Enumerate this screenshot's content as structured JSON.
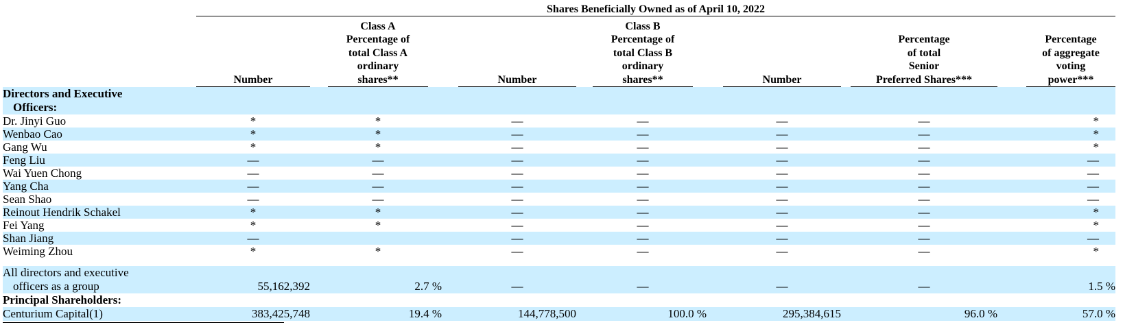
{
  "header": {
    "span_title": "Shares Beneficially Owned as of April 10, 2022",
    "columns": [
      "Number",
      "Class A\nPercentage of\ntotal Class A\nordinary\nshares**",
      "Number",
      "Class B\nPercentage of\ntotal Class B\nordinary\nshares**",
      "Number",
      "Percentage\nof total\nSenior\nPreferred Shares***",
      "Percentage\nof aggregate\nvoting\npower***"
    ]
  },
  "sections": {
    "directors": {
      "line1": "Directors and Executive",
      "line2": "Officers:"
    },
    "principal": "Principal Shareholders:"
  },
  "rows": [
    {
      "name": "Dr. Jinyi Guo",
      "cells": [
        "*",
        "*",
        "—",
        "—",
        "—",
        "—",
        "*"
      ]
    },
    {
      "name": "Wenbao Cao",
      "cells": [
        "*",
        "*",
        "—",
        "—",
        "—",
        "—",
        "*"
      ]
    },
    {
      "name": "Gang Wu",
      "cells": [
        "*",
        "*",
        "—",
        "—",
        "—",
        "—",
        "*"
      ]
    },
    {
      "name": "Feng Liu",
      "cells": [
        "—",
        "—",
        "—",
        "—",
        "—",
        "—",
        "—"
      ]
    },
    {
      "name": "Wai Yuen Chong",
      "cells": [
        "—",
        "—",
        "—",
        "—",
        "—",
        "—",
        "—"
      ]
    },
    {
      "name": "Yang Cha",
      "cells": [
        "—",
        "—",
        "—",
        "—",
        "—",
        "—",
        "—"
      ]
    },
    {
      "name": "Sean Shao",
      "cells": [
        "—",
        "—",
        "—",
        "—",
        "—",
        "—",
        "—"
      ]
    },
    {
      "name": "Reinout Hendrik Schakel",
      "cells": [
        "*",
        "*",
        "—",
        "—",
        "—",
        "—",
        "*"
      ]
    },
    {
      "name": "Fei Yang",
      "cells": [
        "*",
        "*",
        "—",
        "—",
        "—",
        "—",
        "*"
      ]
    },
    {
      "name": "Shan Jiang",
      "cells": [
        "—",
        "",
        "—",
        "—",
        "—",
        "—",
        "—"
      ]
    },
    {
      "name": "Weiming Zhou",
      "cells": [
        "*",
        "*",
        "—",
        "—",
        "—",
        "—",
        "*"
      ]
    }
  ],
  "group_row": {
    "line1": "All directors and executive",
    "line2": "officers as a group",
    "cells": [
      "55,162,392",
      "2.7 %",
      "—",
      "—",
      "—",
      "—",
      "1.5 %"
    ]
  },
  "centurium_row": {
    "name": "Centurium Capital(1)",
    "cells": [
      "383,425,748",
      "19.4 %",
      "144,778,500",
      "100.0 %",
      "295,384,615",
      "96.0 %",
      "57.0 %"
    ]
  }
}
